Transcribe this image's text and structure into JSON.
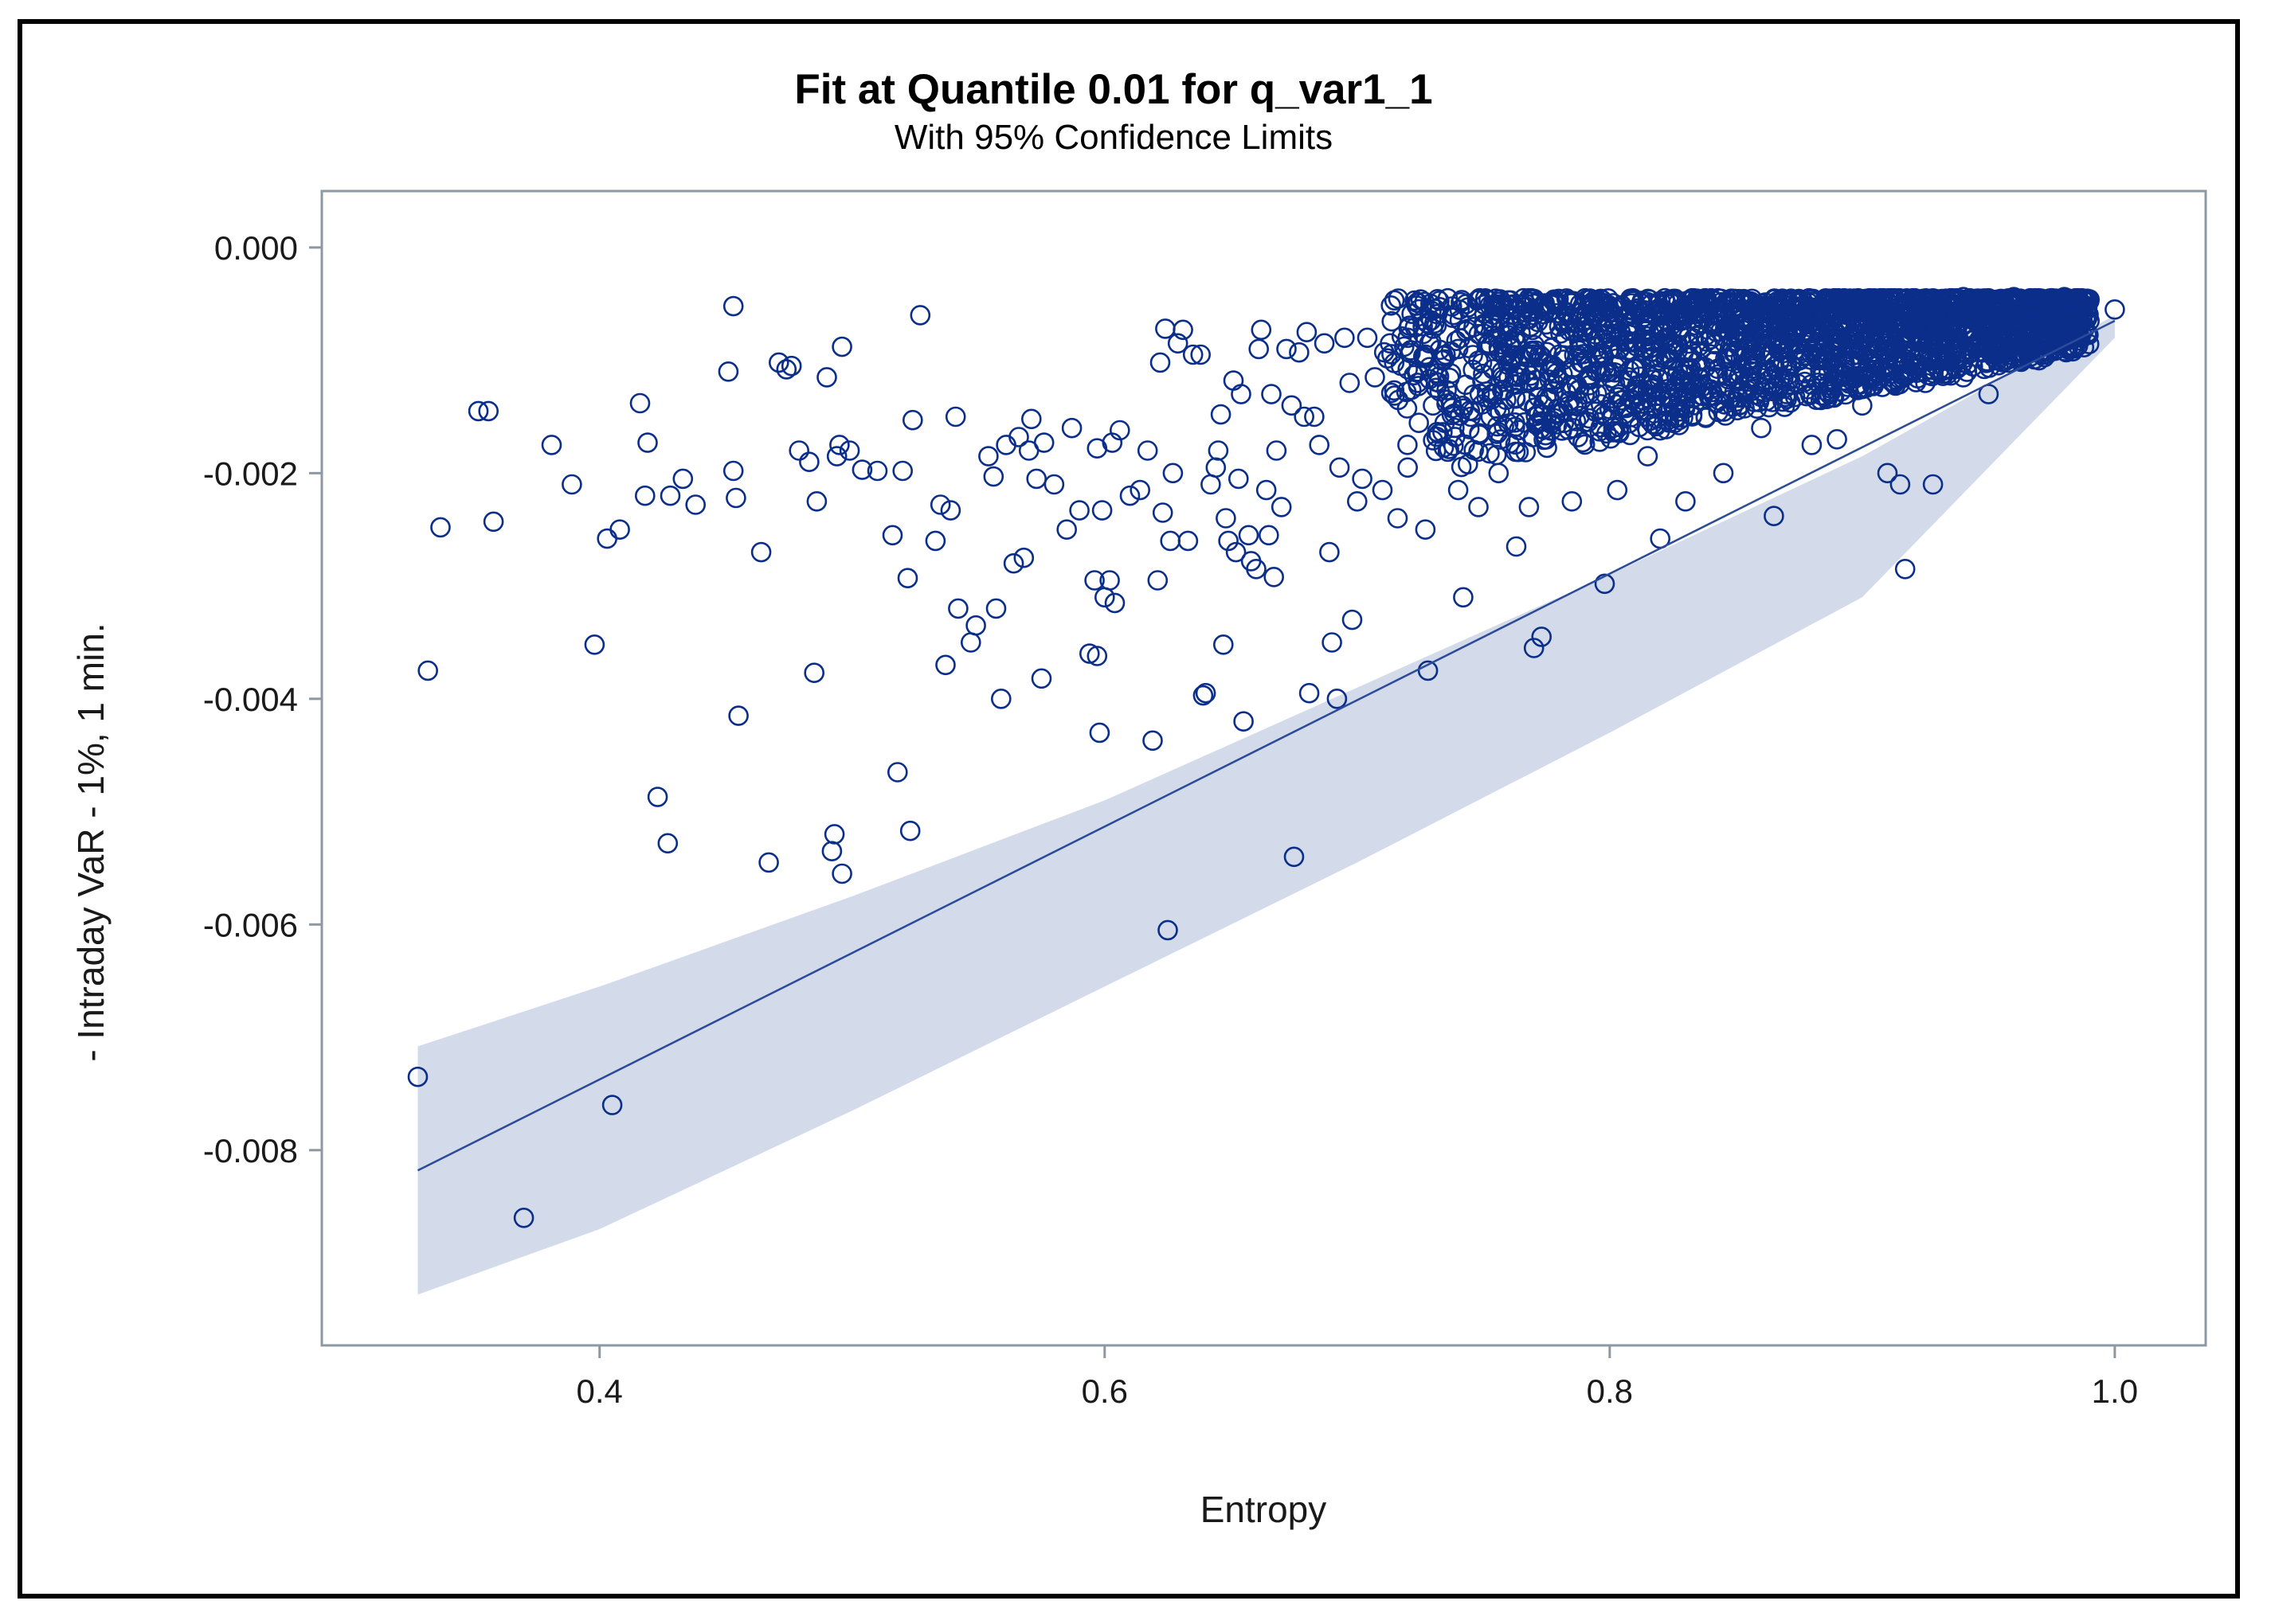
{
  "chart_data": {
    "type": "scatter",
    "title": "Fit at Quantile 0.01 for q_var1_1",
    "subtitle": "With 95% Confidence Limits",
    "xlabel": "Entropy",
    "ylabel": "- Intraday VaR - 1%, 1 min.",
    "xlim": [
      0.29,
      1.036
    ],
    "ylim": [
      -0.00973,
      0.0005
    ],
    "x_ticks": [
      0.4,
      0.6,
      0.8,
      1.0
    ],
    "x_tick_labels": [
      "0.4",
      "0.6",
      "0.8",
      "1.0"
    ],
    "y_ticks": [
      0.0,
      -0.002,
      -0.004,
      -0.006,
      -0.008
    ],
    "y_tick_labels": [
      "0.000",
      "-0.002",
      "-0.004",
      "-0.006",
      "-0.008"
    ],
    "grid": false,
    "fit_line": {
      "x": [
        0.328,
        1.0
      ],
      "y": [
        -0.00818,
        -0.00065
      ]
    },
    "confidence_band": {
      "x": [
        0.328,
        0.4,
        0.5,
        0.6,
        0.7,
        0.8,
        0.9,
        1.0
      ],
      "upper": [
        -0.00708,
        -0.00655,
        -0.00575,
        -0.0049,
        -0.0039,
        -0.0029,
        -0.00185,
        -0.0006
      ],
      "lower": [
        -0.00928,
        -0.0087,
        -0.00765,
        -0.00655,
        -0.00545,
        -0.0043,
        -0.0031,
        -0.0008
      ]
    },
    "series": [
      {
        "name": "observations",
        "marker": "open-circle",
        "color": "#0a2e8a",
        "points": [
          [
            0.328,
            -0.00735
          ],
          [
            0.332,
            -0.00375
          ],
          [
            0.337,
            -0.00248
          ],
          [
            0.352,
            -0.00145
          ],
          [
            0.356,
            -0.00145
          ],
          [
            0.358,
            -0.00243
          ],
          [
            0.37,
            -0.0086
          ],
          [
            0.381,
            -0.00175
          ],
          [
            0.389,
            -0.0021
          ],
          [
            0.398,
            -0.00352
          ],
          [
            0.403,
            -0.00258
          ],
          [
            0.405,
            -0.0076
          ],
          [
            0.408,
            -0.0025
          ],
          [
            0.416,
            -0.00138
          ],
          [
            0.419,
            -0.00173
          ],
          [
            0.418,
            -0.0022
          ],
          [
            0.423,
            -0.00487
          ],
          [
            0.427,
            -0.00528
          ],
          [
            0.428,
            -0.0022
          ],
          [
            0.433,
            -0.00205
          ],
          [
            0.438,
            -0.00228
          ],
          [
            0.451,
            -0.0011
          ],
          [
            0.453,
            -0.00052
          ],
          [
            0.453,
            -0.00198
          ],
          [
            0.454,
            -0.00222
          ],
          [
            0.455,
            -0.00415
          ],
          [
            0.464,
            -0.0027
          ],
          [
            0.467,
            -0.00545
          ],
          [
            0.471,
            -0.00102
          ],
          [
            0.474,
            -0.00108
          ],
          [
            0.476,
            -0.00105
          ],
          [
            0.479,
            -0.0018
          ],
          [
            0.483,
            -0.0019
          ],
          [
            0.486,
            -0.00225
          ],
          [
            0.485,
            -0.00377
          ],
          [
            0.49,
            -0.00115
          ],
          [
            0.492,
            -0.00535
          ],
          [
            0.493,
            -0.0052
          ],
          [
            0.494,
            -0.00185
          ],
          [
            0.495,
            -0.00175
          ],
          [
            0.496,
            -0.00088
          ],
          [
            0.496,
            -0.00555
          ],
          [
            0.499,
            -0.0018
          ],
          [
            0.504,
            -0.00197
          ],
          [
            0.51,
            -0.00198
          ],
          [
            0.516,
            -0.00255
          ],
          [
            0.518,
            -0.00465
          ],
          [
            0.52,
            -0.00198
          ],
          [
            0.522,
            -0.00293
          ],
          [
            0.523,
            -0.00517
          ],
          [
            0.524,
            -0.00153
          ],
          [
            0.527,
            -0.0006
          ],
          [
            0.533,
            -0.0026
          ],
          [
            0.535,
            -0.00228
          ],
          [
            0.537,
            -0.0037
          ],
          [
            0.539,
            -0.00233
          ],
          [
            0.541,
            -0.0015
          ],
          [
            0.542,
            -0.0032
          ],
          [
            0.547,
            -0.0035
          ],
          [
            0.549,
            -0.00335
          ],
          [
            0.554,
            -0.00185
          ],
          [
            0.556,
            -0.00203
          ],
          [
            0.557,
            -0.0032
          ],
          [
            0.559,
            -0.004
          ],
          [
            0.561,
            -0.00175
          ],
          [
            0.564,
            -0.0028
          ],
          [
            0.566,
            -0.00168
          ],
          [
            0.568,
            -0.00275
          ],
          [
            0.57,
            -0.0018
          ],
          [
            0.571,
            -0.00152
          ],
          [
            0.573,
            -0.00205
          ],
          [
            0.576,
            -0.00173
          ],
          [
            0.575,
            -0.00382
          ],
          [
            0.58,
            -0.0021
          ],
          [
            0.585,
            -0.0025
          ],
          [
            0.587,
            -0.0016
          ],
          [
            0.59,
            -0.00233
          ],
          [
            0.594,
            -0.0036
          ],
          [
            0.596,
            -0.00295
          ],
          [
            0.597,
            -0.00178
          ],
          [
            0.597,
            -0.00362
          ],
          [
            0.598,
            -0.0043
          ],
          [
            0.599,
            -0.00233
          ],
          [
            0.6,
            -0.0031
          ],
          [
            0.602,
            -0.00295
          ],
          [
            0.603,
            -0.00173
          ],
          [
            0.604,
            -0.00315
          ],
          [
            0.606,
            -0.00162
          ],
          [
            0.61,
            -0.0022
          ],
          [
            0.614,
            -0.00215
          ],
          [
            0.617,
            -0.0018
          ],
          [
            0.619,
            -0.00437
          ],
          [
            0.621,
            -0.00295
          ],
          [
            0.622,
            -0.00102
          ],
          [
            0.623,
            -0.00235
          ],
          [
            0.624,
            -0.00072
          ],
          [
            0.625,
            -0.00605
          ],
          [
            0.626,
            -0.0026
          ],
          [
            0.627,
            -0.002
          ],
          [
            0.629,
            -0.00085
          ],
          [
            0.631,
            -0.00073
          ],
          [
            0.633,
            -0.0026
          ],
          [
            0.635,
            -0.00095
          ],
          [
            0.638,
            -0.00095
          ],
          [
            0.639,
            -0.00397
          ],
          [
            0.64,
            -0.00395
          ],
          [
            0.642,
            -0.0021
          ],
          [
            0.644,
            -0.00195
          ],
          [
            0.645,
            -0.0018
          ],
          [
            0.646,
            -0.00148
          ],
          [
            0.647,
            -0.00352
          ],
          [
            0.648,
            -0.0024
          ],
          [
            0.649,
            -0.0026
          ],
          [
            0.651,
            -0.00118
          ],
          [
            0.652,
            -0.0027
          ],
          [
            0.653,
            -0.00205
          ],
          [
            0.654,
            -0.0013
          ],
          [
            0.655,
            -0.0042
          ],
          [
            0.657,
            -0.00255
          ],
          [
            0.658,
            -0.00278
          ],
          [
            0.66,
            -0.00285
          ],
          [
            0.661,
            -0.0009
          ],
          [
            0.662,
            -0.00073
          ],
          [
            0.664,
            -0.00215
          ],
          [
            0.665,
            -0.00255
          ],
          [
            0.666,
            -0.0013
          ],
          [
            0.667,
            -0.00292
          ],
          [
            0.668,
            -0.0018
          ],
          [
            0.67,
            -0.0023
          ],
          [
            0.672,
            -0.0009
          ],
          [
            0.674,
            -0.0014
          ],
          [
            0.675,
            -0.0054
          ],
          [
            0.677,
            -0.00093
          ],
          [
            0.679,
            -0.0015
          ],
          [
            0.68,
            -0.00075
          ],
          [
            0.681,
            -0.00395
          ],
          [
            0.683,
            -0.0015
          ],
          [
            0.685,
            -0.00175
          ],
          [
            0.687,
            -0.00085
          ],
          [
            0.689,
            -0.0027
          ],
          [
            0.69,
            -0.0035
          ],
          [
            0.692,
            -0.004
          ],
          [
            0.693,
            -0.00195
          ],
          [
            0.695,
            -0.0008
          ],
          [
            0.697,
            -0.0012
          ],
          [
            0.698,
            -0.0033
          ],
          [
            0.7,
            -0.00225
          ],
          [
            0.702,
            -0.00205
          ],
          [
            0.704,
            -0.0008
          ],
          [
            0.707,
            -0.00115
          ],
          [
            0.71,
            -0.00215
          ],
          [
            0.713,
            -0.00085
          ],
          [
            0.716,
            -0.0024
          ],
          [
            0.72,
            -0.00195
          ],
          [
            0.724,
            -0.0011
          ],
          [
            0.727,
            -0.0025
          ],
          [
            0.728,
            -0.00375
          ],
          [
            0.73,
            -0.0014
          ],
          [
            0.735,
            -0.00095
          ],
          [
            0.74,
            -0.00215
          ],
          [
            0.742,
            -0.0031
          ],
          [
            0.745,
            -0.0015
          ],
          [
            0.748,
            -0.0023
          ],
          [
            0.752,
            -0.00085
          ],
          [
            0.756,
            -0.002
          ],
          [
            0.76,
            -0.00115
          ],
          [
            0.763,
            -0.00265
          ],
          [
            0.768,
            -0.0023
          ],
          [
            0.77,
            -0.00355
          ],
          [
            0.773,
            -0.00345
          ],
          [
            0.776,
            -0.00135
          ],
          [
            0.78,
            -0.00095
          ],
          [
            0.785,
            -0.00225
          ],
          [
            0.79,
            -0.00155
          ],
          [
            0.795,
            -0.0011
          ],
          [
            0.798,
            -0.00298
          ],
          [
            0.803,
            -0.00215
          ],
          [
            0.81,
            -0.0013
          ],
          [
            0.815,
            -0.00185
          ],
          [
            0.82,
            -0.00258
          ],
          [
            0.825,
            -0.00085
          ],
          [
            0.83,
            -0.00225
          ],
          [
            0.838,
            -0.0015
          ],
          [
            0.845,
            -0.002
          ],
          [
            0.85,
            -0.00095
          ],
          [
            0.86,
            -0.0016
          ],
          [
            0.865,
            -0.00238
          ],
          [
            0.87,
            -0.0013
          ],
          [
            0.88,
            -0.00175
          ],
          [
            0.885,
            -0.00088
          ],
          [
            0.89,
            -0.0017
          ],
          [
            0.9,
            -0.0014
          ],
          [
            0.91,
            -0.002
          ],
          [
            0.915,
            -0.0021
          ],
          [
            0.917,
            -0.00285
          ],
          [
            0.925,
            -0.0012
          ],
          [
            0.928,
            -0.0021
          ],
          [
            0.94,
            -0.00115
          ],
          [
            0.95,
            -0.0013
          ],
          [
            0.96,
            -0.00085
          ],
          [
            0.97,
            -0.001
          ],
          [
            0.98,
            -0.00075
          ],
          [
            0.99,
            -0.00065
          ],
          [
            1.0,
            -0.00055
          ],
          [
            0.72,
            -0.0008
          ],
          [
            0.73,
            -0.00072
          ],
          [
            0.74,
            -0.0009
          ],
          [
            0.75,
            -0.00068
          ],
          [
            0.76,
            -0.00078
          ],
          [
            0.77,
            -0.0006
          ],
          [
            0.78,
            -0.0007
          ],
          [
            0.79,
            -0.00065
          ],
          [
            0.8,
            -0.00058
          ],
          [
            0.81,
            -0.00062
          ],
          [
            0.82,
            -0.00055
          ],
          [
            0.83,
            -0.0006
          ],
          [
            0.84,
            -0.00052
          ],
          [
            0.85,
            -0.00055
          ],
          [
            0.86,
            -0.0005
          ],
          [
            0.87,
            -0.00052
          ],
          [
            0.88,
            -0.00048
          ],
          [
            0.89,
            -0.0005
          ],
          [
            0.9,
            -0.00046
          ],
          [
            0.91,
            -0.00048
          ],
          [
            0.92,
            -0.00045
          ],
          [
            0.93,
            -0.00046
          ],
          [
            0.94,
            -0.00044
          ],
          [
            0.95,
            -0.00045
          ],
          [
            0.96,
            -0.00044
          ],
          [
            0.97,
            -0.00045
          ],
          [
            0.98,
            -0.00044
          ],
          [
            0.99,
            -0.00046
          ]
        ],
        "dense_cloud": {
          "x_range": [
            0.71,
            0.99
          ],
          "y_top": -0.00045,
          "y_bottom_left": -0.0021,
          "y_bottom_right": -0.0009,
          "count": 2300
        }
      }
    ]
  }
}
